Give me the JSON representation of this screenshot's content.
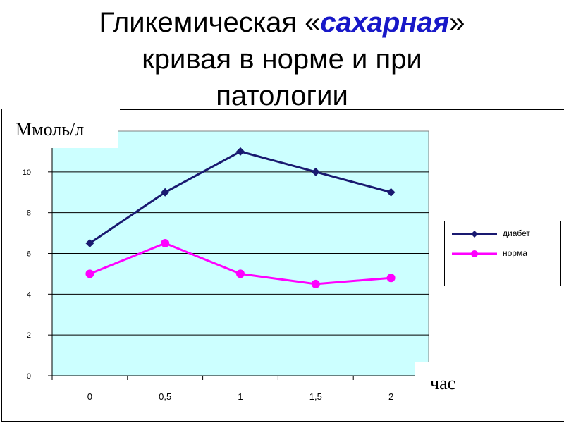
{
  "title": {
    "line1_prefix": "Гликемическая «",
    "line1_em": "сахарная",
    "line1_suffix": "»",
    "line2": "кривая в норме и при",
    "line3": "патологии"
  },
  "chart_data": {
    "type": "line",
    "categories": [
      "0",
      "0,5",
      "1",
      "1,5",
      "2"
    ],
    "series": [
      {
        "name": "диабет",
        "values": [
          6.5,
          9,
          11,
          10,
          9
        ],
        "color": "#191970",
        "marker": "diamond"
      },
      {
        "name": "норма",
        "values": [
          5,
          6.5,
          5,
          4.5,
          4.8
        ],
        "color": "#ff00ff",
        "marker": "circle"
      }
    ],
    "ylabel": "Ммоль/л",
    "xlabel": "час",
    "ylim": [
      0,
      12
    ],
    "yticks": [
      "0",
      "2",
      "4",
      "6",
      "8",
      "10"
    ],
    "grid": true,
    "plot_background": "#ccffff",
    "legend_placement": "right"
  }
}
